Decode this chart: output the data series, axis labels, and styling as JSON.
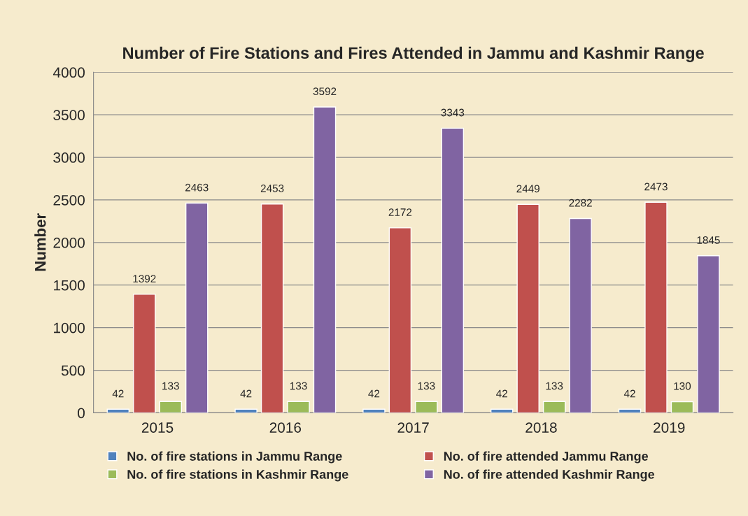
{
  "chart_data": {
    "type": "bar",
    "title": "Number of Fire Stations and Fires Attended in Jammu and Kashmir Range",
    "ylabel": "Number",
    "categories": [
      "2015",
      "2016",
      "2017",
      "2018",
      "2019"
    ],
    "series": [
      {
        "name": "No. of fire stations in Jammu Range",
        "color": "#4f81bd",
        "values": [
          42,
          42,
          42,
          42,
          42
        ]
      },
      {
        "name": "No. of fire attended Jammu Range",
        "color": "#c0504d",
        "values": [
          1392,
          2453,
          2172,
          2449,
          2473
        ]
      },
      {
        "name": "No. of fire stations in Kashmir Range",
        "color": "#9bbb59",
        "values": [
          133,
          133,
          133,
          133,
          130
        ]
      },
      {
        "name": "No. of fire attended Kashmir Range",
        "color": "#8064a2",
        "values": [
          2463,
          3592,
          3343,
          2282,
          1845
        ]
      }
    ],
    "ylim": [
      0,
      4000
    ],
    "yticks": [
      0,
      500,
      1000,
      1500,
      2000,
      2500,
      3000,
      3500,
      4000
    ],
    "grid": "y",
    "legend": "bottom",
    "data_labels": true
  }
}
